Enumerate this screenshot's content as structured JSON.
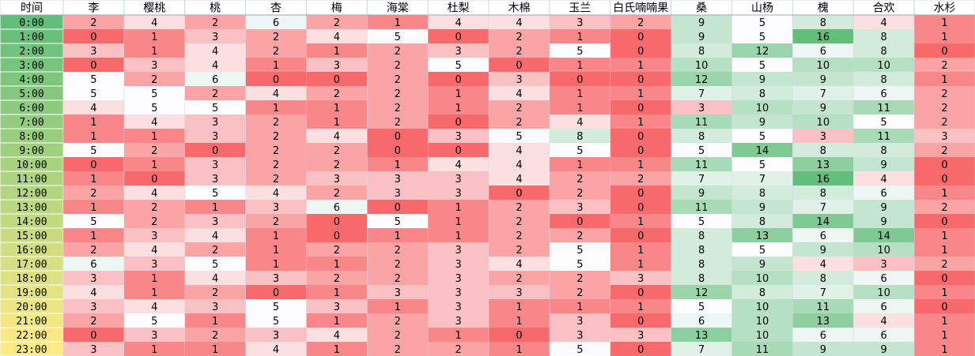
{
  "chart_data": {
    "type": "heatmap",
    "corner_label": "时间",
    "columns": [
      "李",
      "樱桃",
      "桃",
      "杏",
      "梅",
      "海棠",
      "杜梨",
      "木棉",
      "玉兰",
      "白氏喃喃果",
      "桑",
      "山杨",
      "槐",
      "合欢",
      "水杉"
    ],
    "rows": [
      "0:00",
      "1:00",
      "2:00",
      "3:00",
      "4:00",
      "5:00",
      "6:00",
      "7:00",
      "8:00",
      "9:00",
      "10:00",
      "11:00",
      "12:00",
      "13:00",
      "14:00",
      "15:00",
      "16:00",
      "17:00",
      "18:00",
      "19:00",
      "20:00",
      "21:00",
      "22:00",
      "23:00"
    ],
    "values": [
      [
        2,
        4,
        2,
        6,
        2,
        1,
        4,
        4,
        3,
        2,
        9,
        5,
        8,
        4,
        1
      ],
      [
        0,
        1,
        3,
        2,
        4,
        5,
        0,
        2,
        1,
        0,
        9,
        5,
        16,
        8,
        1
      ],
      [
        3,
        1,
        4,
        2,
        1,
        2,
        3,
        2,
        5,
        0,
        8,
        12,
        6,
        8,
        0
      ],
      [
        0,
        3,
        4,
        1,
        3,
        2,
        5,
        0,
        1,
        1,
        10,
        5,
        10,
        10,
        2
      ],
      [
        5,
        2,
        6,
        0,
        0,
        2,
        0,
        3,
        0,
        0,
        12,
        9,
        9,
        8,
        1
      ],
      [
        5,
        5,
        2,
        4,
        2,
        2,
        1,
        4,
        1,
        1,
        7,
        8,
        7,
        6,
        2
      ],
      [
        4,
        5,
        5,
        1,
        1,
        2,
        1,
        2,
        1,
        0,
        3,
        10,
        9,
        11,
        2
      ],
      [
        1,
        4,
        3,
        2,
        1,
        2,
        0,
        2,
        4,
        1,
        11,
        9,
        10,
        5,
        2
      ],
      [
        1,
        1,
        3,
        2,
        4,
        0,
        3,
        5,
        8,
        0,
        8,
        5,
        3,
        11,
        3
      ],
      [
        5,
        2,
        0,
        2,
        2,
        0,
        0,
        4,
        5,
        0,
        5,
        14,
        8,
        8,
        2
      ],
      [
        0,
        1,
        3,
        2,
        2,
        1,
        4,
        4,
        1,
        1,
        11,
        5,
        13,
        9,
        0
      ],
      [
        1,
        0,
        3,
        2,
        3,
        3,
        3,
        4,
        2,
        2,
        7,
        7,
        16,
        4,
        0
      ],
      [
        2,
        4,
        5,
        4,
        2,
        3,
        3,
        0,
        2,
        0,
        9,
        8,
        8,
        6,
        1
      ],
      [
        1,
        2,
        1,
        3,
        6,
        0,
        1,
        2,
        3,
        0,
        11,
        9,
        7,
        9,
        2
      ],
      [
        5,
        2,
        3,
        2,
        0,
        5,
        1,
        2,
        0,
        1,
        5,
        8,
        14,
        9,
        0
      ],
      [
        1,
        3,
        4,
        1,
        0,
        1,
        1,
        2,
        2,
        0,
        8,
        13,
        6,
        14,
        1
      ],
      [
        2,
        4,
        2,
        1,
        2,
        2,
        3,
        2,
        5,
        1,
        8,
        5,
        9,
        10,
        1
      ],
      [
        6,
        3,
        5,
        1,
        1,
        2,
        3,
        4,
        5,
        1,
        8,
        9,
        4,
        3,
        2
      ],
      [
        3,
        1,
        4,
        3,
        2,
        2,
        3,
        2,
        2,
        3,
        8,
        10,
        8,
        6,
        0
      ],
      [
        4,
        1,
        2,
        0,
        1,
        3,
        3,
        3,
        2,
        0,
        12,
        8,
        7,
        10,
        1
      ],
      [
        3,
        4,
        3,
        5,
        3,
        1,
        3,
        1,
        1,
        1,
        5,
        10,
        11,
        6,
        0
      ],
      [
        2,
        5,
        1,
        5,
        1,
        2,
        3,
        1,
        3,
        0,
        6,
        10,
        13,
        4,
        1
      ],
      [
        0,
        3,
        2,
        3,
        4,
        2,
        1,
        0,
        3,
        3,
        13,
        10,
        6,
        6,
        1
      ],
      [
        3,
        1,
        1,
        4,
        1,
        2,
        2,
        1,
        5,
        0,
        7,
        11,
        9,
        9,
        1
      ]
    ],
    "colors": {
      "low": "#f8696b",
      "mid": "#fcfcff",
      "high": "#63be7b",
      "header_bg": "#ffffff",
      "grid_line": "#d0d7e5",
      "time_dark": "#63be7b",
      "time_light": "#ffeb84",
      "text": "#000000"
    }
  }
}
